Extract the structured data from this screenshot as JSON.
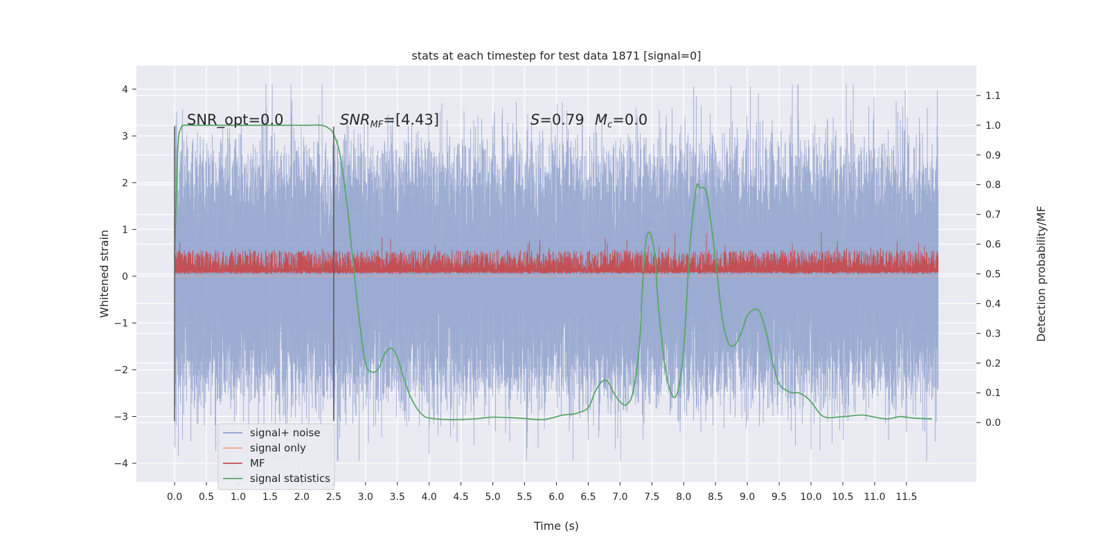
{
  "chart_data": {
    "type": "line",
    "title": "stats at each timestep for test data 1871 [signal=0]",
    "xlabel": "Time (s)",
    "ylabel_left": "Whitened strain",
    "ylabel_right": "Detection probability/MF",
    "xlim": [
      -0.6,
      12.6
    ],
    "ylim_left": [
      -4.4,
      4.5
    ],
    "ylim_right": [
      -0.2,
      1.2
    ],
    "x_ticks": [
      0.0,
      0.5,
      1.0,
      1.5,
      2.0,
      2.5,
      3.0,
      3.5,
      4.0,
      4.5,
      5.0,
      5.5,
      6.0,
      6.5,
      7.0,
      7.5,
      8.0,
      8.5,
      9.0,
      9.5,
      10.0,
      10.5,
      11.0,
      11.5
    ],
    "x_tick_labels": [
      "0.0",
      "0.5",
      "1.0",
      "1.5",
      "2.0",
      "2.5",
      "3.0",
      "3.5",
      "4.0",
      "4.5",
      "5.0",
      "5.5",
      "6.0",
      "6.5",
      "7.0",
      "7.5",
      "8.0",
      "8.5",
      "9.0",
      "9.5",
      "10.0",
      "10.5",
      "11.0",
      "11.5"
    ],
    "y_left_ticks": [
      -4,
      -3,
      -2,
      -1,
      0,
      1,
      2,
      3,
      4
    ],
    "y_left_tick_labels": [
      "−4",
      "−3",
      "−2",
      "−1",
      "0",
      "1",
      "2",
      "3",
      "4"
    ],
    "y_right_ticks": [
      0.0,
      0.1,
      0.2,
      0.3,
      0.4,
      0.5,
      0.6,
      0.7,
      0.8,
      0.9,
      1.0,
      1.1
    ],
    "y_right_tick_labels": [
      "0.0",
      "0.1",
      "0.2",
      "0.3",
      "0.4",
      "0.5",
      "0.6",
      "0.7",
      "0.8",
      "0.9",
      "1.0",
      "1.1"
    ],
    "grid": true,
    "legend_placement": "bottom-left",
    "legend": [
      {
        "label": "signal+ noise",
        "color": "#8da0cb"
      },
      {
        "label": "signal only",
        "color": "#f0a383"
      },
      {
        "label": "MF",
        "color": "#c44e52"
      },
      {
        "label": "signal statistics",
        "color": "#55a868"
      }
    ],
    "annotations": {
      "snr_opt": "SNR_opt=0.0",
      "snr_mf_base": "SNR",
      "snr_mf_sub": "MF",
      "snr_mf_rest": "=[4.43]",
      "s_sym": "S",
      "s_val": "=0.79",
      "mc_sym": "M",
      "mc_sub": "c",
      "mc_val": "=0.0"
    },
    "vertical_markers": [
      {
        "x": 0.0,
        "y_from": -3.1,
        "y_to": 3.2
      },
      {
        "x": 2.5,
        "y_from": -3.1,
        "y_to": 3.2
      }
    ],
    "series": [
      {
        "name": "signal+ noise",
        "axis": "left",
        "color": "#8da0cb",
        "x_range": [
          0.0,
          12.0
        ],
        "description_range": [
          -3.95,
          4.1
        ],
        "typical_envelope": [
          -1.9,
          2.0
        ],
        "peaks": [
          {
            "x": 0.06,
            "y": -3.85
          },
          {
            "x": 2.9,
            "y": -3.95
          },
          {
            "x": 9.8,
            "y": 4.1
          },
          {
            "x": 3.35,
            "y": 3.45
          },
          {
            "x": 6.4,
            "y": 3.4
          },
          {
            "x": 9.2,
            "y": 3.3
          },
          {
            "x": 10.0,
            "y": -3.7
          },
          {
            "x": 4.0,
            "y": -3.8
          }
        ]
      },
      {
        "name": "signal only",
        "axis": "left",
        "color": "#f0a383",
        "x": [
          0.0,
          12.0
        ],
        "y": [
          0.0,
          0.0
        ]
      },
      {
        "name": "MF",
        "axis": "right",
        "color": "#c44e52",
        "x_range": [
          0.0,
          12.0
        ],
        "baseline": 0.5,
        "typical_range": [
          0.51,
          0.58
        ],
        "max": 0.64
      },
      {
        "name": "signal statistics",
        "axis": "right",
        "color": "#55a868",
        "x": [
          0.0,
          0.05,
          0.1,
          0.15,
          0.25,
          0.5,
          1.0,
          2.0,
          2.3,
          2.42,
          2.5,
          2.6,
          2.7,
          2.8,
          2.9,
          3.0,
          3.1,
          3.2,
          3.3,
          3.4,
          3.5,
          3.6,
          3.7,
          3.8,
          3.9,
          4.0,
          4.3,
          4.7,
          5.0,
          5.4,
          5.8,
          6.1,
          6.3,
          6.5,
          6.6,
          6.7,
          6.8,
          6.9,
          7.0,
          7.1,
          7.2,
          7.3,
          7.35,
          7.4,
          7.45,
          7.5,
          7.55,
          7.6,
          7.7,
          7.8,
          7.9,
          8.0,
          8.1,
          8.2,
          8.25,
          8.3,
          8.35,
          8.4,
          8.5,
          8.6,
          8.7,
          8.8,
          8.9,
          9.0,
          9.1,
          9.15,
          9.2,
          9.3,
          9.4,
          9.5,
          9.6,
          9.7,
          9.8,
          9.9,
          10.0,
          10.2,
          10.5,
          10.8,
          11.0,
          11.2,
          11.4,
          11.6,
          11.9
        ],
        "y": [
          0.55,
          0.92,
          0.99,
          1.0,
          1.0,
          1.0,
          1.0,
          1.0,
          1.0,
          0.99,
          0.97,
          0.9,
          0.75,
          0.55,
          0.35,
          0.2,
          0.17,
          0.18,
          0.23,
          0.25,
          0.22,
          0.15,
          0.09,
          0.05,
          0.025,
          0.015,
          0.01,
          0.012,
          0.018,
          0.015,
          0.01,
          0.025,
          0.03,
          0.05,
          0.1,
          0.135,
          0.14,
          0.1,
          0.07,
          0.06,
          0.1,
          0.25,
          0.45,
          0.6,
          0.64,
          0.62,
          0.55,
          0.4,
          0.2,
          0.1,
          0.1,
          0.25,
          0.6,
          0.79,
          0.79,
          0.79,
          0.78,
          0.72,
          0.55,
          0.36,
          0.27,
          0.26,
          0.3,
          0.36,
          0.38,
          0.38,
          0.37,
          0.3,
          0.2,
          0.13,
          0.11,
          0.1,
          0.1,
          0.09,
          0.07,
          0.02,
          0.02,
          0.025,
          0.018,
          0.012,
          0.02,
          0.015,
          0.012
        ]
      }
    ]
  }
}
